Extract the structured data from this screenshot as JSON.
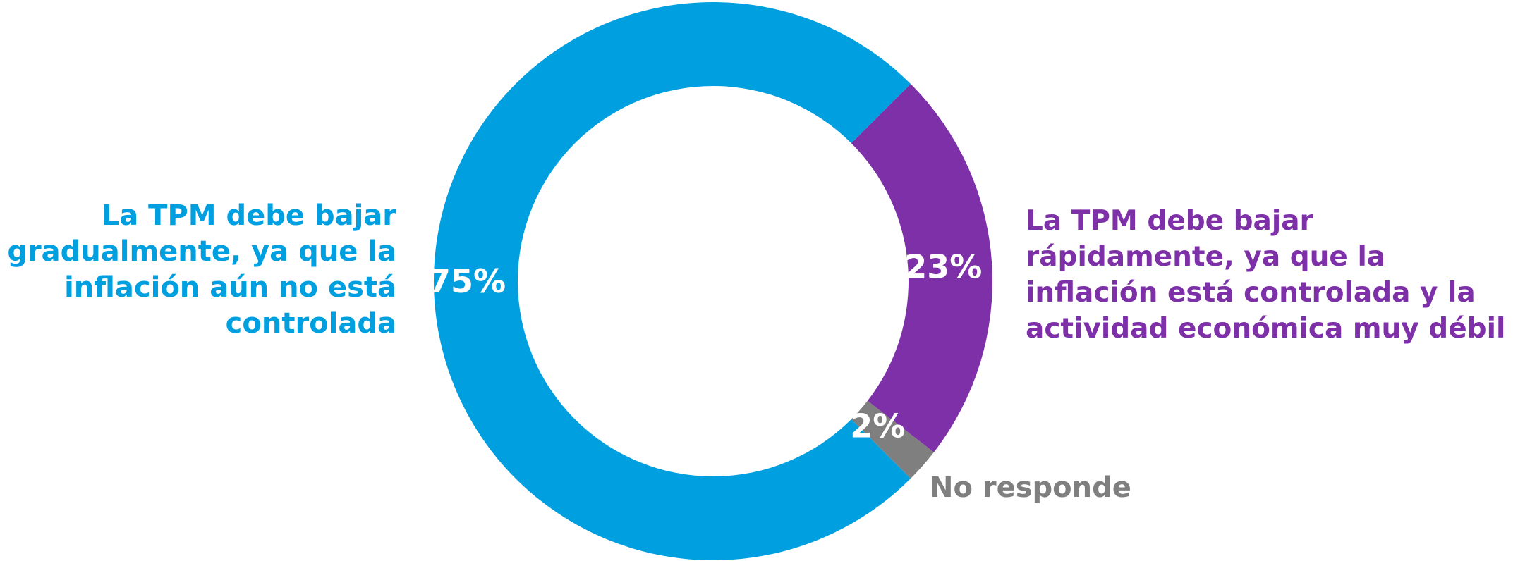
{
  "chart_data": {
    "type": "pie",
    "variant": "donut",
    "title": "",
    "slices": [
      {
        "key": "gradual",
        "value": 75,
        "label": "75%",
        "color": "#009FDF",
        "legend_lines": [
          "La TPM debe bajar",
          "gradualmente, ya que la",
          "inflación aún no está",
          "controlada"
        ]
      },
      {
        "key": "rapid",
        "value": 23,
        "label": "23%",
        "color": "#7E30A9",
        "legend_lines": [
          "La TPM debe bajar",
          "rápidamente, ya que la",
          "inflación está controlada y la",
          "actividad económica muy débil"
        ]
      },
      {
        "key": "noresp",
        "value": 2,
        "label": "2%",
        "color": "#7F7F7F",
        "legend_lines": [
          "No responde"
        ]
      }
    ]
  }
}
